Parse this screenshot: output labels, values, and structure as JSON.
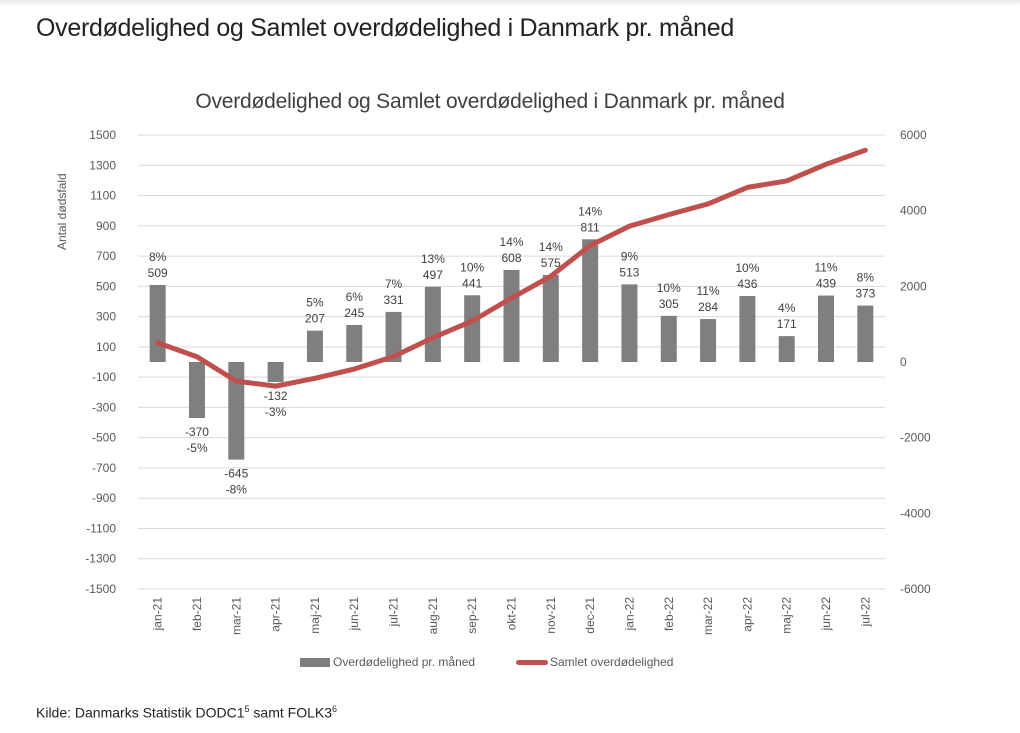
{
  "page_title": "Overdødelighed og Samlet overdødelighed i Danmark pr. måned",
  "source_text": {
    "prefix": "Kilde: Danmarks Statistik DODC1",
    "sup1": "5",
    "middle": " samt FOLK3",
    "sup2": "6"
  },
  "chart_data": {
    "type": "bar+line",
    "title": "Overdødelighed og Samlet overdødelighed i Danmark pr. måned",
    "ylabel": "Antal dødsfald",
    "ylim": [
      -1500,
      1500
    ],
    "y_ticks": [
      1500,
      1300,
      1100,
      900,
      700,
      500,
      300,
      100,
      -100,
      -300,
      -500,
      -700,
      -900,
      -1100,
      -1300,
      -1500
    ],
    "y2lim": [
      -6000,
      6000
    ],
    "y2_ticks": [
      6000,
      4000,
      2000,
      0,
      -2000,
      -4000,
      -6000
    ],
    "grid": true,
    "legend_position": "bottom",
    "categories": [
      "jan-21",
      "feb-21",
      "mar-21",
      "apr-21",
      "maj-21",
      "jun-21",
      "jul-21",
      "aug-21",
      "sep-21",
      "okt-21",
      "nov-21",
      "dec-21",
      "jan-22",
      "feb-22",
      "mar-22",
      "apr-22",
      "maj-22",
      "jun-22",
      "jul-22"
    ],
    "series": [
      {
        "name": "Overdødelighed pr. måned",
        "type": "bar",
        "axis": "left",
        "color": "#7f7f7f",
        "values": [
          509,
          -370,
          -645,
          -132,
          207,
          245,
          331,
          497,
          441,
          608,
          575,
          811,
          513,
          305,
          284,
          436,
          171,
          439,
          373
        ],
        "percent_labels": [
          "8%",
          "-5%",
          "-8%",
          "-3%",
          "5%",
          "6%",
          "7%",
          "13%",
          "10%",
          "14%",
          "14%",
          "14%",
          "9%",
          "10%",
          "11%",
          "10%",
          "4%",
          "11%",
          "8%"
        ]
      },
      {
        "name": "Samlet overdødelighed",
        "type": "line",
        "axis": "right",
        "color": "#c0504d",
        "values": [
          509,
          139,
          -506,
          -638,
          -431,
          -186,
          145,
          642,
          1083,
          1691,
          2266,
          3077,
          3590,
          3895,
          4179,
          4615,
          4786,
          5225,
          5598
        ]
      }
    ]
  }
}
